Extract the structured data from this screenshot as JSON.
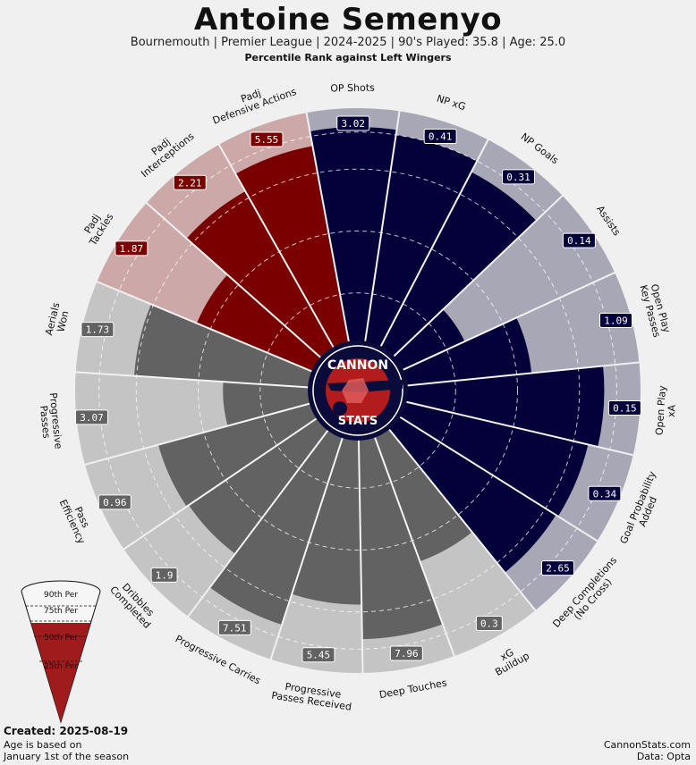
{
  "header": {
    "title": "Antoine Semenyo",
    "subtitle": "Bournemouth  | Premier League | 2024-2025 | 90's Played: 35.8 | Age: 25.0",
    "caption": "Percentile Rank against Left Wingers"
  },
  "footer": {
    "created": "Created: 2025-08-19",
    "age_note_1": "Age is based on",
    "age_note_2": "January 1st of the season",
    "site": "CannonStats.com",
    "source": "Data: Opta"
  },
  "logo": {
    "top_text": "CANNON",
    "bottom_text": "STATS"
  },
  "legend": {
    "labels": [
      "90th Per",
      "75th Per",
      "50th Per",
      "25th Per"
    ]
  },
  "colors": {
    "background": "#f0f0f0",
    "attacking": "#03003a",
    "attacking_bg": "#a8a7b6",
    "defending": "#7a0000",
    "defending_bg": "#cda8a8",
    "possession": "#626262",
    "possession_bg": "#c4c4c4",
    "legend_red": "#a01c1c"
  },
  "chart_data": {
    "type": "polar-bar",
    "rlim": [
      0,
      100
    ],
    "reference_rings": [
      25,
      50,
      75,
      90
    ],
    "categories": [
      {
        "label": "OP Shots",
        "value_label": "3.02",
        "percentile": 92,
        "group": "attacking"
      },
      {
        "label": "NP xG",
        "value_label": "0.41",
        "percentile": 90,
        "group": "attacking"
      },
      {
        "label": "NP Goals",
        "value_label": "0.31",
        "percentile": 85,
        "group": "attacking"
      },
      {
        "label": "Assists",
        "value_label": "0.14",
        "percentile": 33,
        "group": "attacking"
      },
      {
        "label": "Open Play\nKey Passes",
        "value_label": "1.09",
        "percentile": 56,
        "group": "attacking"
      },
      {
        "label": "Open Play\nxA",
        "value_label": "0.15",
        "percentile": 85,
        "group": "attacking"
      },
      {
        "label": "Goal Probability\nAdded",
        "value_label": "0.34",
        "percentile": 81,
        "group": "attacking"
      },
      {
        "label": "Deep Completions\n(No Cross)",
        "value_label": "2.65",
        "percentile": 80,
        "group": "attacking"
      },
      {
        "label": "xG\nBuildup",
        "value_label": "0.3",
        "percentile": 59,
        "group": "possession"
      },
      {
        "label": "Deep Touches",
        "value_label": "7.96",
        "percentile": 86,
        "group": "possession"
      },
      {
        "label": "Progressive\nPasses Received",
        "value_label": "5.45",
        "percentile": 72,
        "group": "possession"
      },
      {
        "label": "Progressive Carries",
        "value_label": "7.51",
        "percentile": 85,
        "group": "possession"
      },
      {
        "label": "Dribbles\nCompleted",
        "value_label": "1.9",
        "percentile": 68,
        "group": "possession"
      },
      {
        "label": "Pass\nEfficiency",
        "value_label": "0.96",
        "percentile": 69,
        "group": "possession"
      },
      {
        "label": "Progressive\nPasses",
        "value_label": "3.07",
        "percentile": 40,
        "group": "possession"
      },
      {
        "label": "Aerials\nWon",
        "value_label": "1.73",
        "percentile": 76,
        "group": "possession"
      },
      {
        "label": "Padj\nTackles",
        "value_label": "1.87",
        "percentile": 56,
        "group": "defending"
      },
      {
        "label": "Padj\nInterceptions",
        "value_label": "2.21",
        "percentile": 78,
        "group": "defending"
      },
      {
        "label": "Padj\nDefensive Actions",
        "value_label": "5.55",
        "percentile": 86,
        "group": "defending"
      }
    ]
  }
}
